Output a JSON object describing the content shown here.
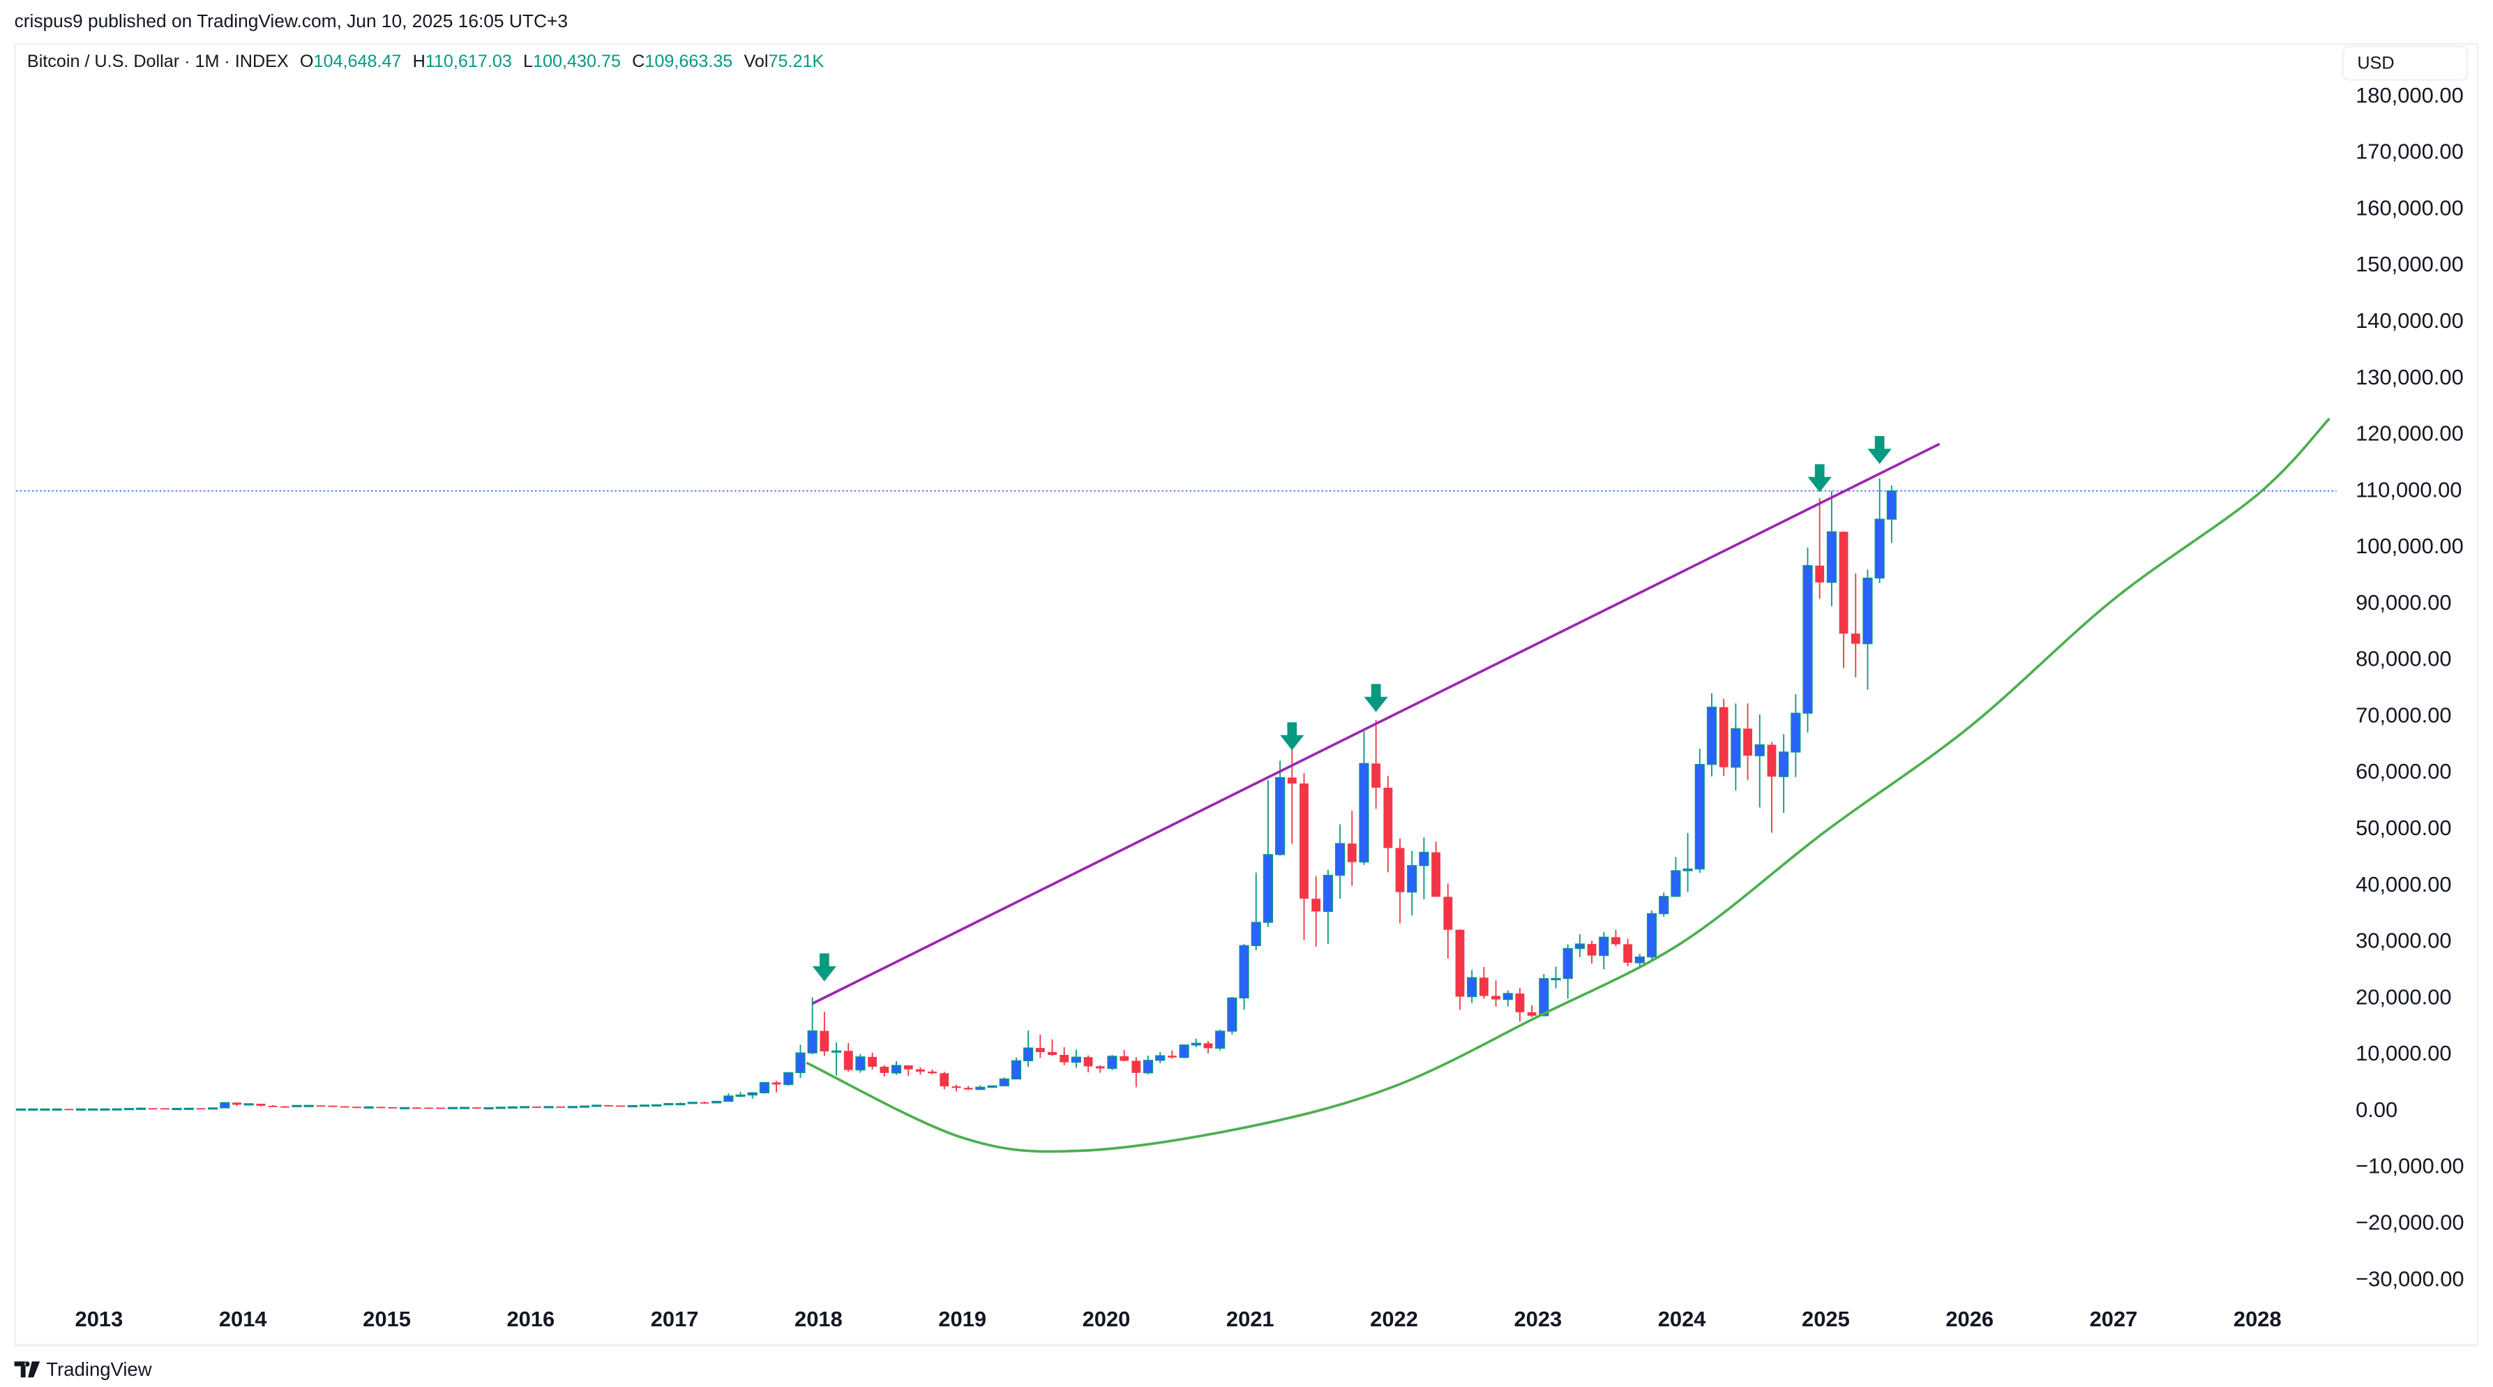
{
  "header": {
    "publisher_line": "crispus9 published on TradingView.com, Jun 10, 2025 16:05 UTC+3"
  },
  "legend": {
    "symbol": "Bitcoin / U.S. Dollar · 1M · INDEX",
    "open_label": "O",
    "open": "104,648.47",
    "high_label": "H",
    "high": "110,617.03",
    "low_label": "L",
    "low": "100,430.75",
    "close_label": "C",
    "close": "109,663.35",
    "vol_label": "Vol",
    "vol": "75.21K"
  },
  "price_scale": {
    "currency": "USD"
  },
  "footer": {
    "brand": "TradingView"
  },
  "colors": {
    "up_body": "#2962ff",
    "up_wick": "#089981",
    "down": "#f23645",
    "trendline": "#9c27b0",
    "curve": "#4caf50",
    "arrow": "#089981",
    "price_line": "#2962ff"
  },
  "chart_data": {
    "type": "candlestick",
    "interval": "1M",
    "ylim": [
      -35000,
      190000
    ],
    "y_ticks": [
      {
        "value": 180000,
        "label": "180,000.00"
      },
      {
        "value": 170000,
        "label": "170,000.00"
      },
      {
        "value": 160000,
        "label": "160,000.00"
      },
      {
        "value": 150000,
        "label": "150,000.00"
      },
      {
        "value": 140000,
        "label": "140,000.00"
      },
      {
        "value": 130000,
        "label": "130,000.00"
      },
      {
        "value": 120000,
        "label": "120,000.00"
      },
      {
        "value": 110000,
        "label": "110,000.00"
      },
      {
        "value": 100000,
        "label": "100,000.00"
      },
      {
        "value": 90000,
        "label": "90,000.00"
      },
      {
        "value": 80000,
        "label": "80,000.00"
      },
      {
        "value": 70000,
        "label": "70,000.00"
      },
      {
        "value": 60000,
        "label": "60,000.00"
      },
      {
        "value": 50000,
        "label": "50,000.00"
      },
      {
        "value": 40000,
        "label": "40,000.00"
      },
      {
        "value": 30000,
        "label": "30,000.00"
      },
      {
        "value": 20000,
        "label": "20,000.00"
      },
      {
        "value": 10000,
        "label": "10,000.00"
      },
      {
        "value": 0,
        "label": "0.00"
      },
      {
        "value": -10000,
        "label": "−10,000.00"
      },
      {
        "value": -20000,
        "label": "−20,000.00"
      },
      {
        "value": -30000,
        "label": "−30,000.00"
      }
    ],
    "x_ticks": [
      "2013",
      "2014",
      "2015",
      "2016",
      "2017",
      "2018",
      "2019",
      "2020",
      "2021",
      "2022",
      "2023",
      "2024",
      "2025",
      "2026",
      "2027",
      "2028"
    ],
    "last_price": 109663.35,
    "candles": [
      [
        "2012-06",
        5.3,
        6.7,
        5.3,
        6.7
      ],
      [
        "2012-07",
        6.7,
        9.4,
        6.5,
        9.4
      ],
      [
        "2012-08",
        9.4,
        15.4,
        7.1,
        10.1
      ],
      [
        "2012-09",
        10.1,
        12.9,
        9.9,
        12.4
      ],
      [
        "2012-10",
        12.4,
        12.9,
        10.5,
        11.2
      ],
      [
        "2012-11",
        11.2,
        12.6,
        10.3,
        12.6
      ],
      [
        "2012-12",
        12.6,
        13.9,
        12.2,
        13.5
      ],
      [
        "2013-01",
        13.5,
        20.4,
        13.2,
        20.4
      ],
      [
        "2013-02",
        20.4,
        33.4,
        19.6,
        33.4
      ],
      [
        "2013-03",
        33.4,
        95,
        33,
        93
      ],
      [
        "2013-04",
        93,
        266,
        50,
        139
      ],
      [
        "2013-05",
        139,
        140,
        79,
        129
      ],
      [
        "2013-06",
        129,
        129,
        89,
        97
      ],
      [
        "2013-07",
        97,
        115,
        65,
        106
      ],
      [
        "2013-08",
        106,
        140,
        98,
        135
      ],
      [
        "2013-09",
        135,
        147,
        112,
        133
      ],
      [
        "2013-10",
        133,
        214,
        105,
        198
      ],
      [
        "2013-11",
        198,
        1163,
        197,
        1129
      ],
      [
        "2013-12",
        1129,
        1163,
        522,
        754
      ],
      [
        "2014-01",
        754,
        1000,
        745,
        930
      ],
      [
        "2014-02",
        930,
        940,
        420,
        567
      ],
      [
        "2014-03",
        567,
        690,
        430,
        458
      ],
      [
        "2014-04",
        458,
        540,
        340,
        447
      ],
      [
        "2014-05",
        447,
        630,
        440,
        628
      ],
      [
        "2014-06",
        628,
        680,
        550,
        640
      ],
      [
        "2014-07",
        640,
        650,
        570,
        587
      ],
      [
        "2014-08",
        587,
        605,
        450,
        477
      ],
      [
        "2014-09",
        477,
        495,
        360,
        387
      ],
      [
        "2014-10",
        387,
        420,
        275,
        338
      ],
      [
        "2014-11",
        338,
        460,
        325,
        378
      ],
      [
        "2014-12",
        378,
        390,
        300,
        320
      ],
      [
        "2015-01",
        320,
        320,
        152,
        217
      ],
      [
        "2015-02",
        217,
        265,
        213,
        254
      ],
      [
        "2015-03",
        254,
        300,
        235,
        244
      ],
      [
        "2015-04",
        244,
        262,
        215,
        236
      ],
      [
        "2015-05",
        236,
        248,
        225,
        230
      ],
      [
        "2015-06",
        230,
        268,
        222,
        263
      ],
      [
        "2015-07",
        263,
        318,
        253,
        285
      ],
      [
        "2015-08",
        285,
        286,
        198,
        230
      ],
      [
        "2015-09",
        230,
        245,
        225,
        236
      ],
      [
        "2015-10",
        236,
        335,
        235,
        314
      ],
      [
        "2015-11",
        314,
        495,
        300,
        377
      ],
      [
        "2015-12",
        377,
        465,
        345,
        430
      ],
      [
        "2016-01",
        430,
        460,
        355,
        368
      ],
      [
        "2016-02",
        368,
        440,
        365,
        437
      ],
      [
        "2016-03",
        437,
        440,
        400,
        416
      ],
      [
        "2016-04",
        416,
        468,
        412,
        448
      ],
      [
        "2016-05",
        448,
        550,
        440,
        531
      ],
      [
        "2016-06",
        531,
        780,
        530,
        673
      ],
      [
        "2016-07",
        673,
        700,
        600,
        624
      ],
      [
        "2016-08",
        624,
        630,
        535,
        575
      ],
      [
        "2016-09",
        575,
        630,
        570,
        609
      ],
      [
        "2016-10",
        609,
        740,
        605,
        700
      ],
      [
        "2016-11",
        700,
        755,
        680,
        743
      ],
      [
        "2016-12",
        743,
        980,
        740,
        963
      ],
      [
        "2017-01",
        963,
        1150,
        750,
        970
      ],
      [
        "2017-02",
        970,
        1200,
        935,
        1190
      ],
      [
        "2017-03",
        1190,
        1290,
        890,
        1080
      ],
      [
        "2017-04",
        1080,
        1350,
        1060,
        1350
      ],
      [
        "2017-05",
        1350,
        2760,
        1340,
        2300
      ],
      [
        "2017-06",
        2300,
        3000,
        2100,
        2480
      ],
      [
        "2017-07",
        2480,
        2950,
        1830,
        2875
      ],
      [
        "2017-08",
        2875,
        4750,
        2700,
        4700
      ],
      [
        "2017-09",
        4700,
        5000,
        2950,
        4340
      ],
      [
        "2017-10",
        4340,
        6470,
        4110,
        6450
      ],
      [
        "2017-11",
        6450,
        11400,
        5500,
        9950
      ],
      [
        "2017-12",
        9950,
        19800,
        9700,
        13850
      ],
      [
        "2018-01",
        13850,
        17250,
        9400,
        10220
      ],
      [
        "2018-02",
        10220,
        11780,
        5920,
        10300
      ],
      [
        "2018-03",
        10300,
        11700,
        6600,
        6920
      ],
      [
        "2018-04",
        6920,
        9750,
        6430,
        9240
      ],
      [
        "2018-05",
        9240,
        9990,
        7000,
        7490
      ],
      [
        "2018-06",
        7490,
        7760,
        5760,
        6390
      ],
      [
        "2018-07",
        6390,
        8490,
        6070,
        7730
      ],
      [
        "2018-08",
        7730,
        7760,
        5880,
        7030
      ],
      [
        "2018-09",
        7030,
        7410,
        6120,
        6630
      ],
      [
        "2018-10",
        6630,
        7000,
        6140,
        6340
      ],
      [
        "2018-11",
        6340,
        6600,
        3500,
        4010
      ],
      [
        "2018-12",
        4010,
        4310,
        3120,
        3740
      ],
      [
        "2019-01",
        3740,
        4110,
        3370,
        3460
      ],
      [
        "2019-02",
        3460,
        4200,
        3350,
        3850
      ],
      [
        "2019-03",
        3850,
        4170,
        3700,
        4100
      ],
      [
        "2019-04",
        4100,
        5600,
        4080,
        5320
      ],
      [
        "2019-05",
        5320,
        9100,
        5300,
        8560
      ],
      [
        "2019-06",
        8560,
        13900,
        7450,
        10820
      ],
      [
        "2019-07",
        10820,
        13200,
        9050,
        10090
      ],
      [
        "2019-08",
        10090,
        12350,
        9400,
        9590
      ],
      [
        "2019-09",
        9590,
        10950,
        7750,
        8290
      ],
      [
        "2019-10",
        8290,
        10550,
        7300,
        9200
      ],
      [
        "2019-11",
        9200,
        9500,
        6500,
        7560
      ],
      [
        "2019-12",
        7560,
        7750,
        6430,
        7190
      ],
      [
        "2020-01",
        7190,
        9570,
        6870,
        9350
      ],
      [
        "2020-02",
        9350,
        10500,
        8450,
        8540
      ],
      [
        "2020-03",
        8540,
        9180,
        3850,
        6410
      ],
      [
        "2020-04",
        6410,
        9470,
        6150,
        8630
      ],
      [
        "2020-05",
        8630,
        10080,
        8120,
        9450
      ],
      [
        "2020-06",
        9450,
        10400,
        8900,
        9140
      ],
      [
        "2020-07",
        9140,
        11450,
        8990,
        11350
      ],
      [
        "2020-08",
        11350,
        12480,
        10950,
        11650
      ],
      [
        "2020-09",
        11650,
        12070,
        9880,
        10780
      ],
      [
        "2020-10",
        10780,
        14100,
        10380,
        13800
      ],
      [
        "2020-11",
        13800,
        19900,
        13200,
        19700
      ],
      [
        "2020-12",
        19700,
        29300,
        17600,
        28990
      ],
      [
        "2021-01",
        28990,
        41950,
        28130,
        33110
      ],
      [
        "2021-02",
        33110,
        58350,
        32300,
        45140
      ],
      [
        "2021-03",
        45140,
        61780,
        44950,
        58800
      ],
      [
        "2021-04",
        58800,
        64850,
        47050,
        57750
      ],
      [
        "2021-05",
        57750,
        59600,
        30000,
        37300
      ],
      [
        "2021-06",
        37300,
        41300,
        28800,
        35040
      ],
      [
        "2021-07",
        35040,
        42450,
        29300,
        41460
      ],
      [
        "2021-08",
        41460,
        50500,
        37330,
        47100
      ],
      [
        "2021-09",
        47100,
        52900,
        39600,
        43820
      ],
      [
        "2021-10",
        43820,
        67000,
        43300,
        61300
      ],
      [
        "2021-11",
        61300,
        69000,
        53250,
        57000
      ],
      [
        "2021-12",
        57000,
        59100,
        42000,
        46300
      ],
      [
        "2022-01",
        46300,
        47990,
        32950,
        38480
      ],
      [
        "2022-02",
        38480,
        45800,
        34320,
        43190
      ],
      [
        "2022-03",
        43190,
        48200,
        37200,
        45540
      ],
      [
        "2022-04",
        45540,
        47450,
        37700,
        37640
      ],
      [
        "2022-05",
        37640,
        40000,
        26700,
        31790
      ],
      [
        "2022-06",
        31790,
        31900,
        17600,
        19930
      ],
      [
        "2022-07",
        19930,
        24650,
        18780,
        23300
      ],
      [
        "2022-08",
        23300,
        25200,
        19550,
        20050
      ],
      [
        "2022-09",
        20050,
        22800,
        18150,
        19430
      ],
      [
        "2022-10",
        19430,
        21000,
        18200,
        20490
      ],
      [
        "2022-11",
        20490,
        21450,
        15480,
        17170
      ],
      [
        "2022-12",
        17170,
        18400,
        16300,
        16540
      ],
      [
        "2023-01",
        16540,
        23950,
        16500,
        23130
      ],
      [
        "2023-02",
        23130,
        25250,
        21400,
        23150
      ],
      [
        "2023-03",
        23150,
        29200,
        19550,
        28470
      ],
      [
        "2023-04",
        28470,
        31000,
        26950,
        29270
      ],
      [
        "2023-05",
        29270,
        29850,
        25800,
        27220
      ],
      [
        "2023-06",
        27220,
        31400,
        24800,
        30480
      ],
      [
        "2023-07",
        30480,
        31800,
        28860,
        29230
      ],
      [
        "2023-08",
        29230,
        30200,
        25300,
        25940
      ],
      [
        "2023-09",
        25940,
        27500,
        24900,
        26970
      ],
      [
        "2023-10",
        26970,
        35200,
        26550,
        34650
      ],
      [
        "2023-11",
        34650,
        38400,
        34100,
        37720
      ],
      [
        "2023-12",
        37720,
        44700,
        37600,
        42280
      ],
      [
        "2024-01",
        42280,
        48970,
        38500,
        42580
      ],
      [
        "2024-02",
        42580,
        63900,
        41900,
        61130
      ],
      [
        "2024-03",
        61130,
        73780,
        59000,
        71290
      ],
      [
        "2024-04",
        71290,
        72750,
        59100,
        60640
      ],
      [
        "2024-05",
        60640,
        71950,
        56500,
        67490
      ],
      [
        "2024-06",
        67490,
        71950,
        58400,
        62680
      ],
      [
        "2024-07",
        62680,
        70000,
        53500,
        64620
      ],
      [
        "2024-08",
        64620,
        65100,
        49000,
        58970
      ],
      [
        "2024-09",
        58970,
        66500,
        52550,
        63330
      ],
      [
        "2024-10",
        63330,
        73600,
        58900,
        70220
      ],
      [
        "2024-11",
        70220,
        99600,
        66800,
        96410
      ],
      [
        "2024-12",
        96410,
        108350,
        90500,
        93430
      ],
      [
        "2025-01",
        93430,
        109600,
        89200,
        102410
      ],
      [
        "2025-02",
        102410,
        102500,
        78200,
        84350
      ],
      [
        "2025-03",
        84350,
        95000,
        76600,
        82550
      ],
      [
        "2025-04",
        82550,
        95700,
        74400,
        94200
      ],
      [
        "2025-05",
        94200,
        111900,
        93300,
        104648.47
      ],
      [
        "2025-06",
        104648.47,
        110617.03,
        100430.75,
        109663.35
      ]
    ],
    "drawings": {
      "trendline": [
        [
          "2017-12",
          18700
        ],
        [
          "2025-10",
          118000
        ]
      ],
      "curve": [
        [
          "2017-12",
          8200
        ],
        [
          "2019-01",
          -5100
        ],
        [
          "2019-11",
          -7400
        ],
        [
          "2021-01",
          -3100
        ],
        [
          "2022-01",
          4000
        ],
        [
          "2023-01",
          16400
        ],
        [
          "2024-01",
          29500
        ],
        [
          "2025-01",
          49300
        ],
        [
          "2026-01",
          67800
        ],
        [
          "2027-01",
          90400
        ],
        [
          "2028-01",
          109000
        ],
        [
          "2028-07",
          122500
        ]
      ],
      "arrows": [
        [
          "2018-01",
          22500
        ],
        [
          "2021-04",
          63500
        ],
        [
          "2021-11",
          70300
        ],
        [
          "2024-12",
          109300
        ],
        [
          "2025-05",
          114300
        ]
      ]
    }
  }
}
